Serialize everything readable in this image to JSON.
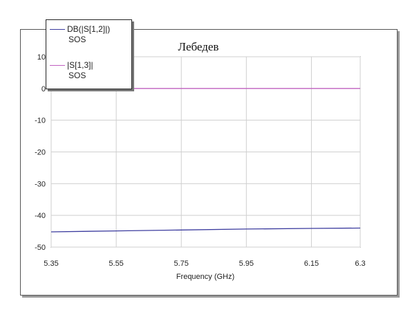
{
  "chart_data": {
    "type": "line",
    "title": "Лебедев",
    "xlabel": "Frequency (GHz)",
    "ylabel": "",
    "xlim": [
      5.35,
      6.3
    ],
    "ylim": [
      -50,
      10
    ],
    "xticks": [
      "5.35",
      "5.55",
      "5.75",
      "5.95",
      "6.15",
      "6.3"
    ],
    "yticks": [
      "10",
      "0",
      "-10",
      "-20",
      "-30",
      "-40",
      "-50"
    ],
    "grid": true,
    "legend_position": "top-left",
    "series": [
      {
        "name": "DB(|S[1,2]|)",
        "source": "SOS",
        "color": "#3b3b9e",
        "x": [
          5.35,
          5.55,
          5.75,
          5.95,
          6.15,
          6.3
        ],
        "y": [
          -45.2,
          -44.9,
          -44.6,
          -44.3,
          -44.1,
          -44.0
        ]
      },
      {
        "name": "|S[1,3]|",
        "source": "SOS",
        "color": "#c060c0",
        "x": [
          5.35,
          5.55,
          5.75,
          5.95,
          6.15,
          6.3
        ],
        "y": [
          0,
          0,
          0,
          0,
          0,
          0
        ]
      }
    ]
  }
}
